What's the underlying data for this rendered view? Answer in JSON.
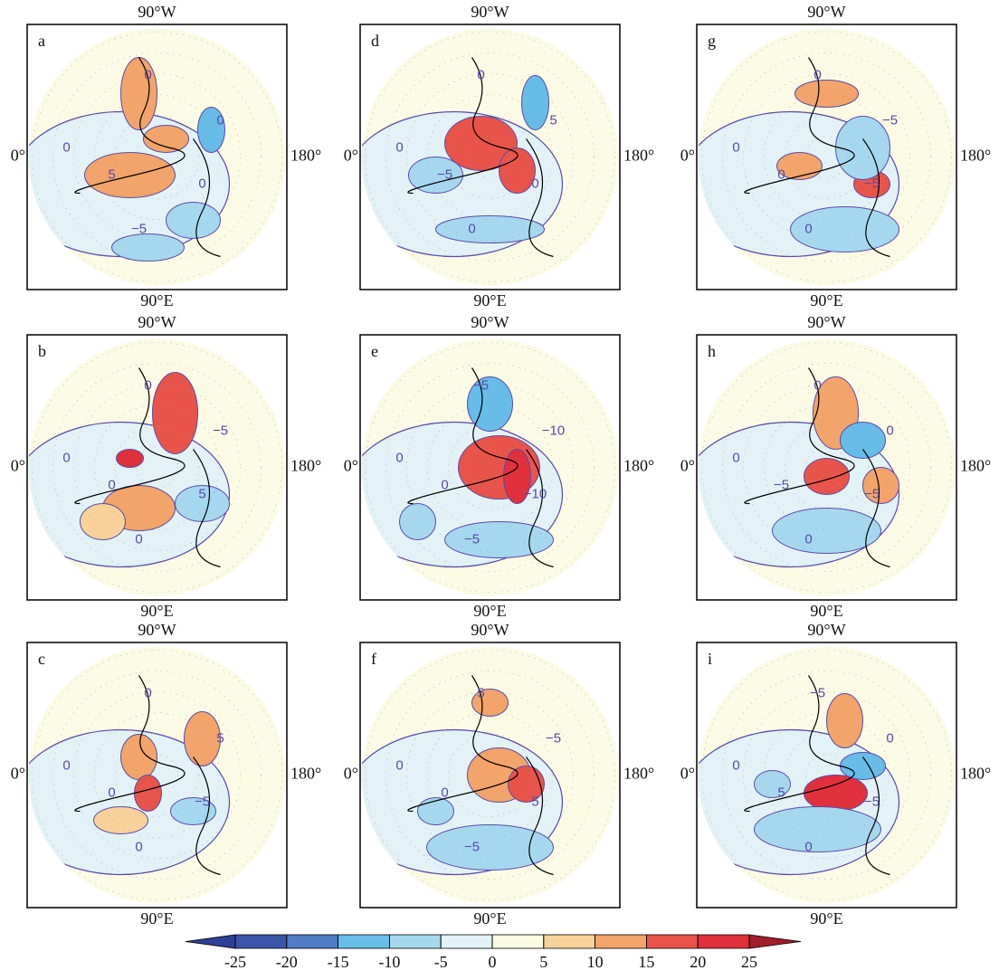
{
  "panels": [
    {
      "label": "a",
      "top": "90°W",
      "bottom": "90°E",
      "left": "0°",
      "right": "180°",
      "contour_labels": [
        "0",
        "0",
        "5",
        "0",
        "−5",
        "0"
      ]
    },
    {
      "label": "b",
      "top": "90°W",
      "bottom": "90°E",
      "left": "0°",
      "right": "180°",
      "contour_labels": [
        "0",
        "−5",
        "0",
        "5",
        "0",
        "0"
      ]
    },
    {
      "label": "c",
      "top": "90°W",
      "bottom": "90°E",
      "left": "0°",
      "right": "180°",
      "contour_labels": [
        "0",
        "5",
        "0",
        "−5",
        "0",
        "0"
      ]
    },
    {
      "label": "d",
      "top": "90°W",
      "bottom": "90°E",
      "left": "0°",
      "right": "180°",
      "contour_labels": [
        "0",
        "5",
        "−5",
        "0",
        "0",
        "0"
      ]
    },
    {
      "label": "e",
      "top": "90°W",
      "bottom": "90°E",
      "left": "0°",
      "right": "180°",
      "contour_labels": [
        "−5",
        "−10",
        "0",
        "−10",
        "−5",
        "0"
      ]
    },
    {
      "label": "f",
      "top": "90°W",
      "bottom": "90°E",
      "left": "0°",
      "right": "180°",
      "contour_labels": [
        "5",
        "−5",
        "0",
        "5",
        "−5",
        "0"
      ]
    },
    {
      "label": "g",
      "top": "90°W",
      "bottom": "90°E",
      "left": "0°",
      "right": "180°",
      "contour_labels": [
        "0",
        "−5",
        "0",
        "−5",
        "0",
        "0"
      ]
    },
    {
      "label": "h",
      "top": "90°W",
      "bottom": "90°E",
      "left": "0°",
      "right": "180°",
      "contour_labels": [
        "0",
        "0",
        "−5",
        "−5",
        "0",
        "0"
      ]
    },
    {
      "label": "i",
      "top": "90°W",
      "bottom": "90°E",
      "left": "0°",
      "right": "180°",
      "contour_labels": [
        "−5",
        "0",
        "5",
        "−5",
        "0",
        "0"
      ]
    }
  ],
  "colorbar": {
    "ticks": [
      -25,
      -20,
      -15,
      -10,
      -5,
      0,
      5,
      10,
      15,
      20,
      25
    ],
    "colors": [
      "#2e3f96",
      "#3a55a8",
      "#4f7cc4",
      "#67bde8",
      "#a5d8ef",
      "#e2f2f7",
      "#fbfae4",
      "#f8d29a",
      "#f2a46a",
      "#e9544a",
      "#e0303c",
      "#a11d2b"
    ]
  }
}
